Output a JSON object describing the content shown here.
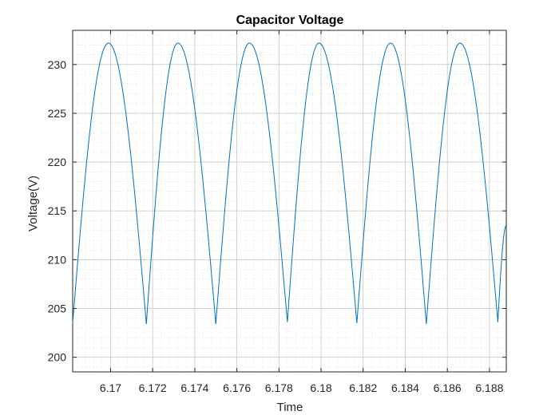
{
  "chart_data": {
    "type": "line",
    "title": "Capacitor Voltage",
    "xlabel": "Time",
    "ylabel": "Voltage(V)",
    "xlim": [
      6.1682,
      6.1888
    ],
    "ylim": [
      198.5,
      233.5
    ],
    "grid": true,
    "minor_grid": true,
    "line_color": "#0072BD",
    "x_ticks": [
      6.17,
      6.172,
      6.174,
      6.176,
      6.178,
      6.18,
      6.182,
      6.184,
      6.186,
      6.188
    ],
    "x_tick_labels": [
      "6.17",
      "6.172",
      "6.174",
      "6.176",
      "6.178",
      "6.18",
      "6.182",
      "6.184",
      "6.186",
      "6.188"
    ],
    "y_ticks": [
      200,
      205,
      210,
      215,
      220,
      225,
      230
    ],
    "y_tick_labels": [
      "200",
      "205",
      "210",
      "215",
      "220",
      "225",
      "230"
    ],
    "series": [
      {
        "x": [
          6.1682,
          6.1699,
          6.1717,
          6.1732,
          6.175,
          6.1766,
          6.1784,
          6.1799,
          6.1817,
          6.1833,
          6.185,
          6.1866,
          6.1884,
          6.1888
        ],
        "values": [
          203.5,
          232.2,
          203.4,
          232.2,
          203.4,
          232.2,
          203.6,
          232.2,
          203.5,
          232.2,
          203.4,
          232.2,
          203.6,
          213.5
        ]
      }
    ]
  }
}
